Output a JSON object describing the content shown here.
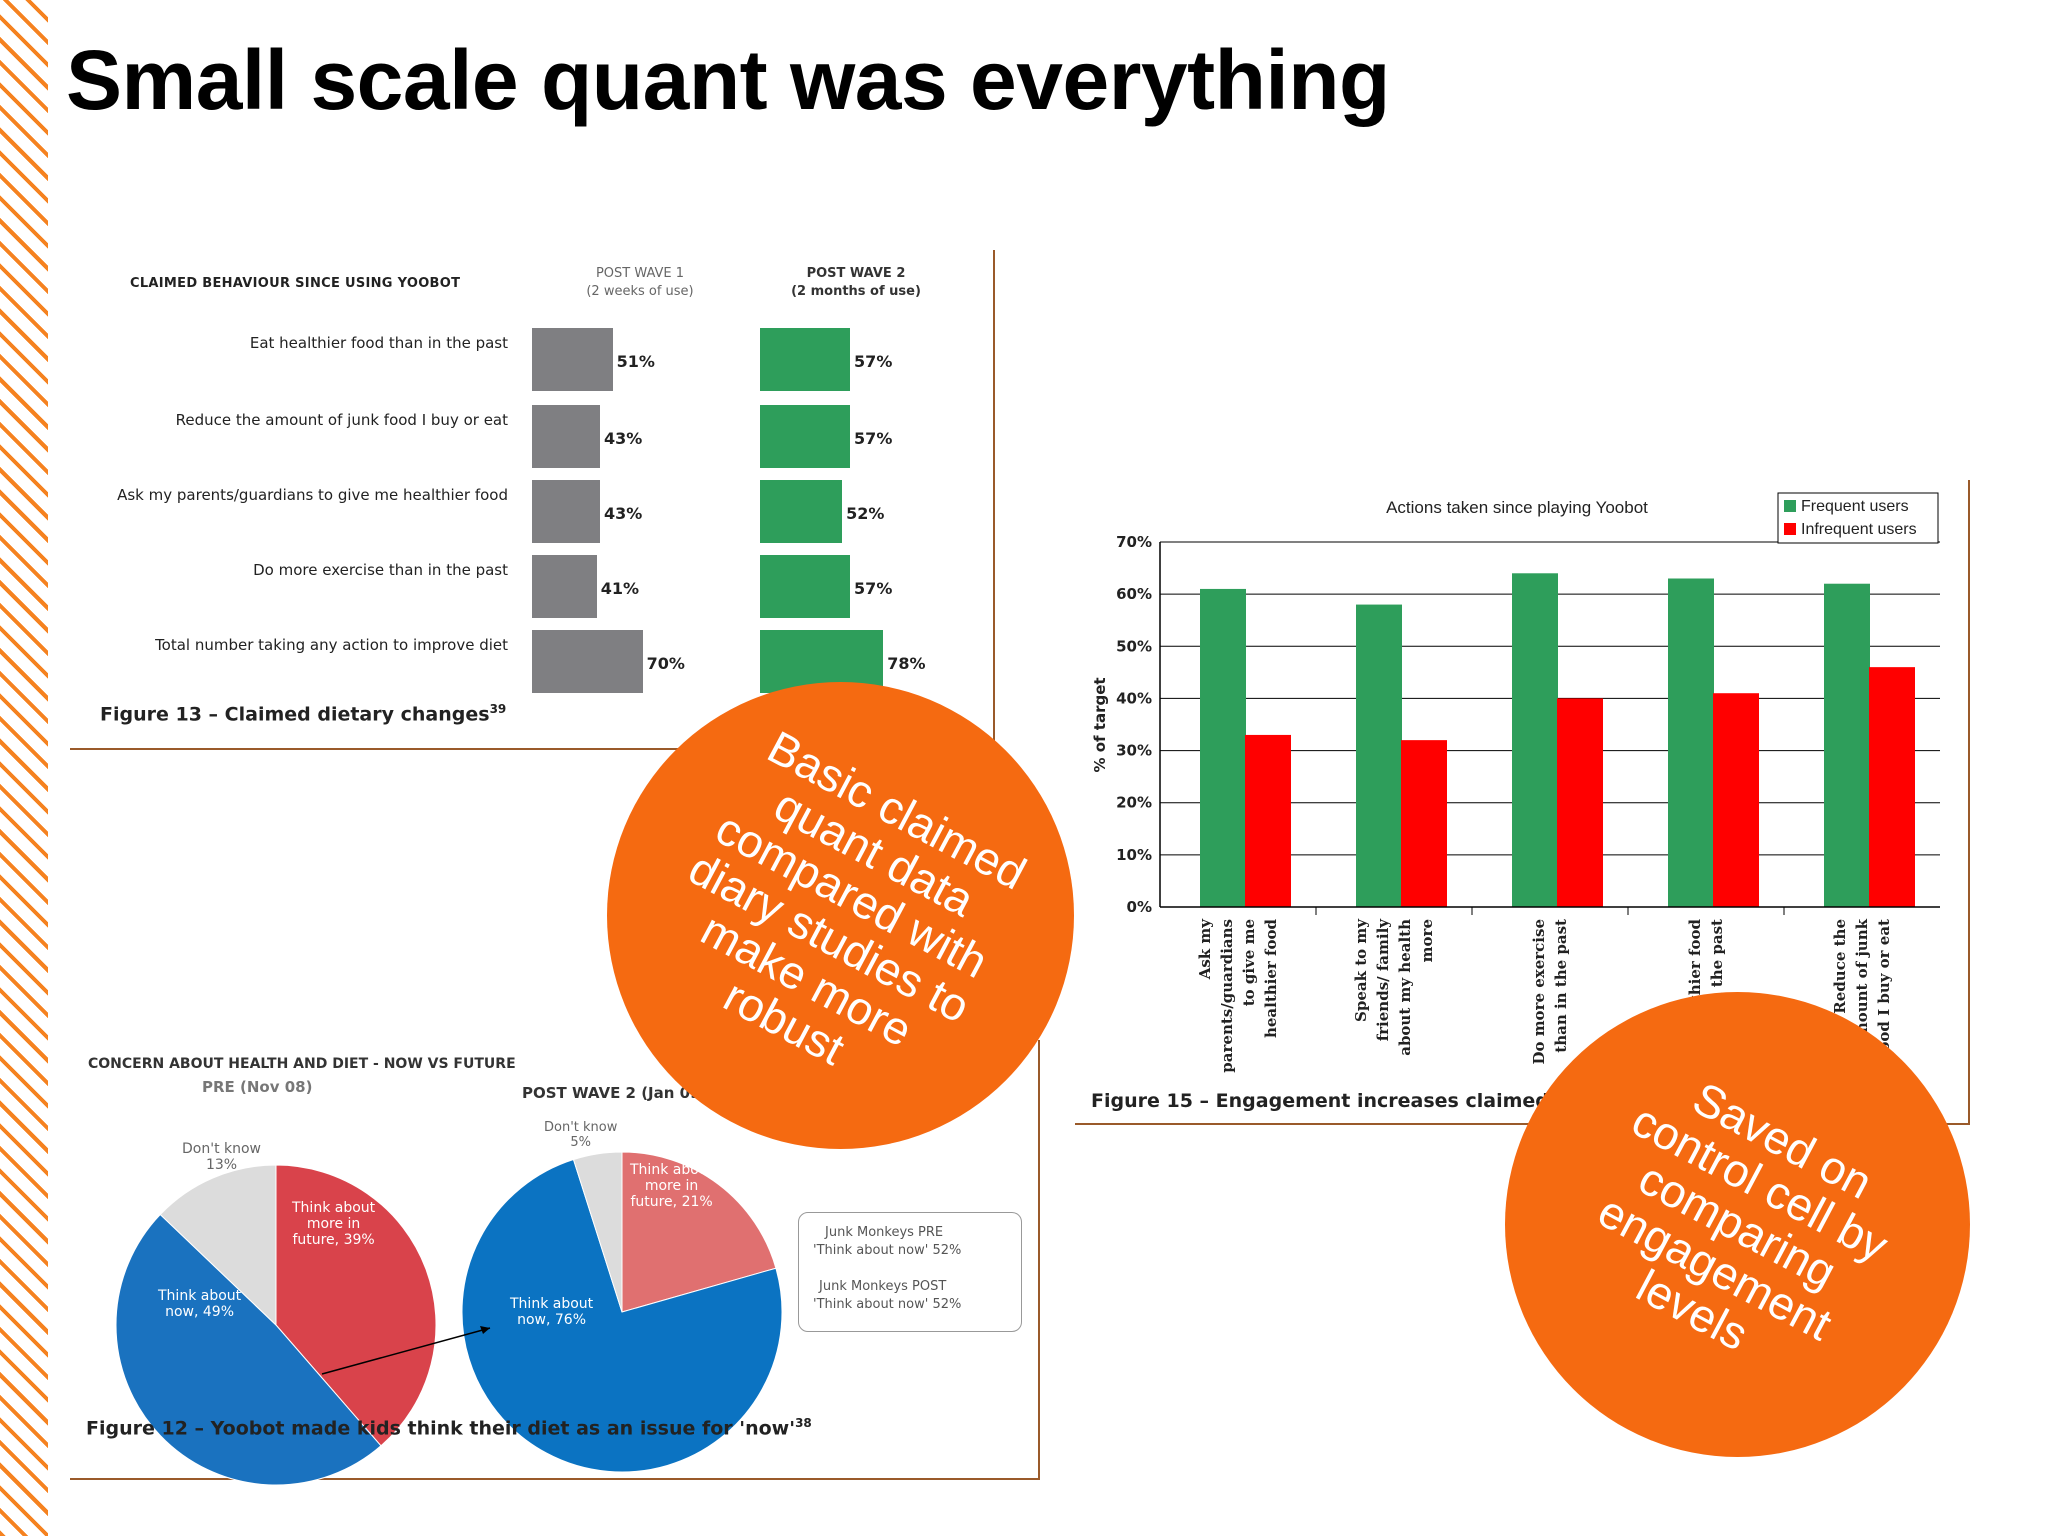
{
  "slide": {
    "title": "Small scale quant was everything",
    "accent_color": "#f58220"
  },
  "figure13": {
    "heading": "CLAIMED BEHAVIOUR SINCE USING YOOBOT",
    "wave1_label": "POST WAVE 1",
    "wave1_sub": "(2 weeks of use)",
    "wave2_label": "POST WAVE 2",
    "wave2_sub": "(2 months of use)",
    "caption": "Figure 13 – Claimed dietary changes",
    "caption_ref": "39"
  },
  "figure12": {
    "heading": "CONCERN ABOUT HEALTH AND DIET - NOW VS FUTURE",
    "pre_title": "PRE (Nov 08)",
    "post_title": "POST WAVE 2 (Jan 09)",
    "caption": "Figure 12 – Yoobot made kids think their diet as an issue for 'now'",
    "caption_ref": "38",
    "legend_line1": "Junk Monkeys PRE",
    "legend_line2": "'Think about now' 52%",
    "legend_line3": "Junk Monkeys POST",
    "legend_line4": "'Think about now' 52%",
    "pre_labels": {
      "dont_know_1": "Don't know",
      "dont_know_2": "13%",
      "future_1": "Think about",
      "future_2": "more in",
      "future_3": "future, 39%",
      "now_1": "Think about",
      "now_2": "now, 49%"
    },
    "post_labels": {
      "dont_know_1": "Don't know",
      "dont_know_2": "5%",
      "future_1": "Think about",
      "future_2": "more in",
      "future_3": "future, 21%",
      "now_1": "Think about",
      "now_2": "now, 76%"
    }
  },
  "figure15": {
    "title": "Actions taken since playing Yoobot",
    "ylabel": "% of target",
    "caption": "Figure 15 – Engagement increases claimed behaviour"
  },
  "callouts": {
    "left": [
      "Basic claimed",
      "quant data",
      "compared with",
      "diary studies to",
      "make more",
      "robust"
    ],
    "right": [
      "Saved on",
      "control cell by",
      "comparing",
      "engagement",
      "levels"
    ]
  },
  "chart_data": [
    {
      "type": "bar",
      "orientation": "horizontal",
      "title": "CLAIMED BEHAVIOUR SINCE USING YOOBOT",
      "categories": [
        "Eat healthier food than in the past",
        "Reduce the amount of junk food I buy or eat",
        "Ask my parents/guardians to give me healthier food",
        "Do more exercise than in the past",
        "Total number taking any action to improve diet"
      ],
      "series": [
        {
          "name": "POST WAVE 1 (2 weeks of use)",
          "values": [
            51,
            43,
            43,
            41,
            70
          ],
          "color": "#7f7f82"
        },
        {
          "name": "POST WAVE 2 (2 months of use)",
          "values": [
            57,
            57,
            52,
            57,
            78
          ],
          "color": "#2e9e5b"
        }
      ],
      "value_labels": [
        "51%",
        "43%",
        "43%",
        "41%",
        "70%",
        "57%",
        "57%",
        "52%",
        "57%",
        "78%"
      ]
    },
    {
      "type": "pie",
      "title": "PRE (Nov 08)",
      "slices": [
        {
          "label": "Think about more in future",
          "value": 39,
          "color": "#d9434b"
        },
        {
          "label": "Think about now",
          "value": 49,
          "color": "#1a72bf"
        },
        {
          "label": "Don't know",
          "value": 13,
          "color": "#dcdcdc"
        }
      ]
    },
    {
      "type": "pie",
      "title": "POST WAVE 2 (Jan 09)",
      "slices": [
        {
          "label": "Think about more in future",
          "value": 21,
          "color": "#e07070"
        },
        {
          "label": "Think about now",
          "value": 76,
          "color": "#0b73c2"
        },
        {
          "label": "Don't know",
          "value": 5,
          "color": "#dcdcdc"
        }
      ]
    },
    {
      "type": "bar",
      "title": "Actions taken since playing Yoobot",
      "ylabel": "% of target",
      "ylim": [
        0,
        70
      ],
      "yticks": [
        "0%",
        "10%",
        "20%",
        "30%",
        "40%",
        "50%",
        "60%",
        "70%"
      ],
      "categories": [
        [
          "Ask my",
          "parents/guardians",
          "to give me",
          "healthier food"
        ],
        [
          "Speak to my",
          "friends/ family",
          "about my health",
          "more"
        ],
        [
          "Do more exercise",
          "than in the past"
        ],
        [
          "Eat healthier food",
          "than in the past"
        ],
        [
          "Reduce the",
          "amount of junk",
          "food I buy or eat"
        ]
      ],
      "series": [
        {
          "name": "Frequent users",
          "values": [
            61,
            58,
            64,
            63,
            62
          ],
          "color": "#2e9e5b"
        },
        {
          "name": "Infrequent users",
          "values": [
            33,
            32,
            40,
            41,
            46
          ],
          "color": "#ff0000"
        }
      ],
      "legend": "top-right",
      "grid": true
    }
  ]
}
